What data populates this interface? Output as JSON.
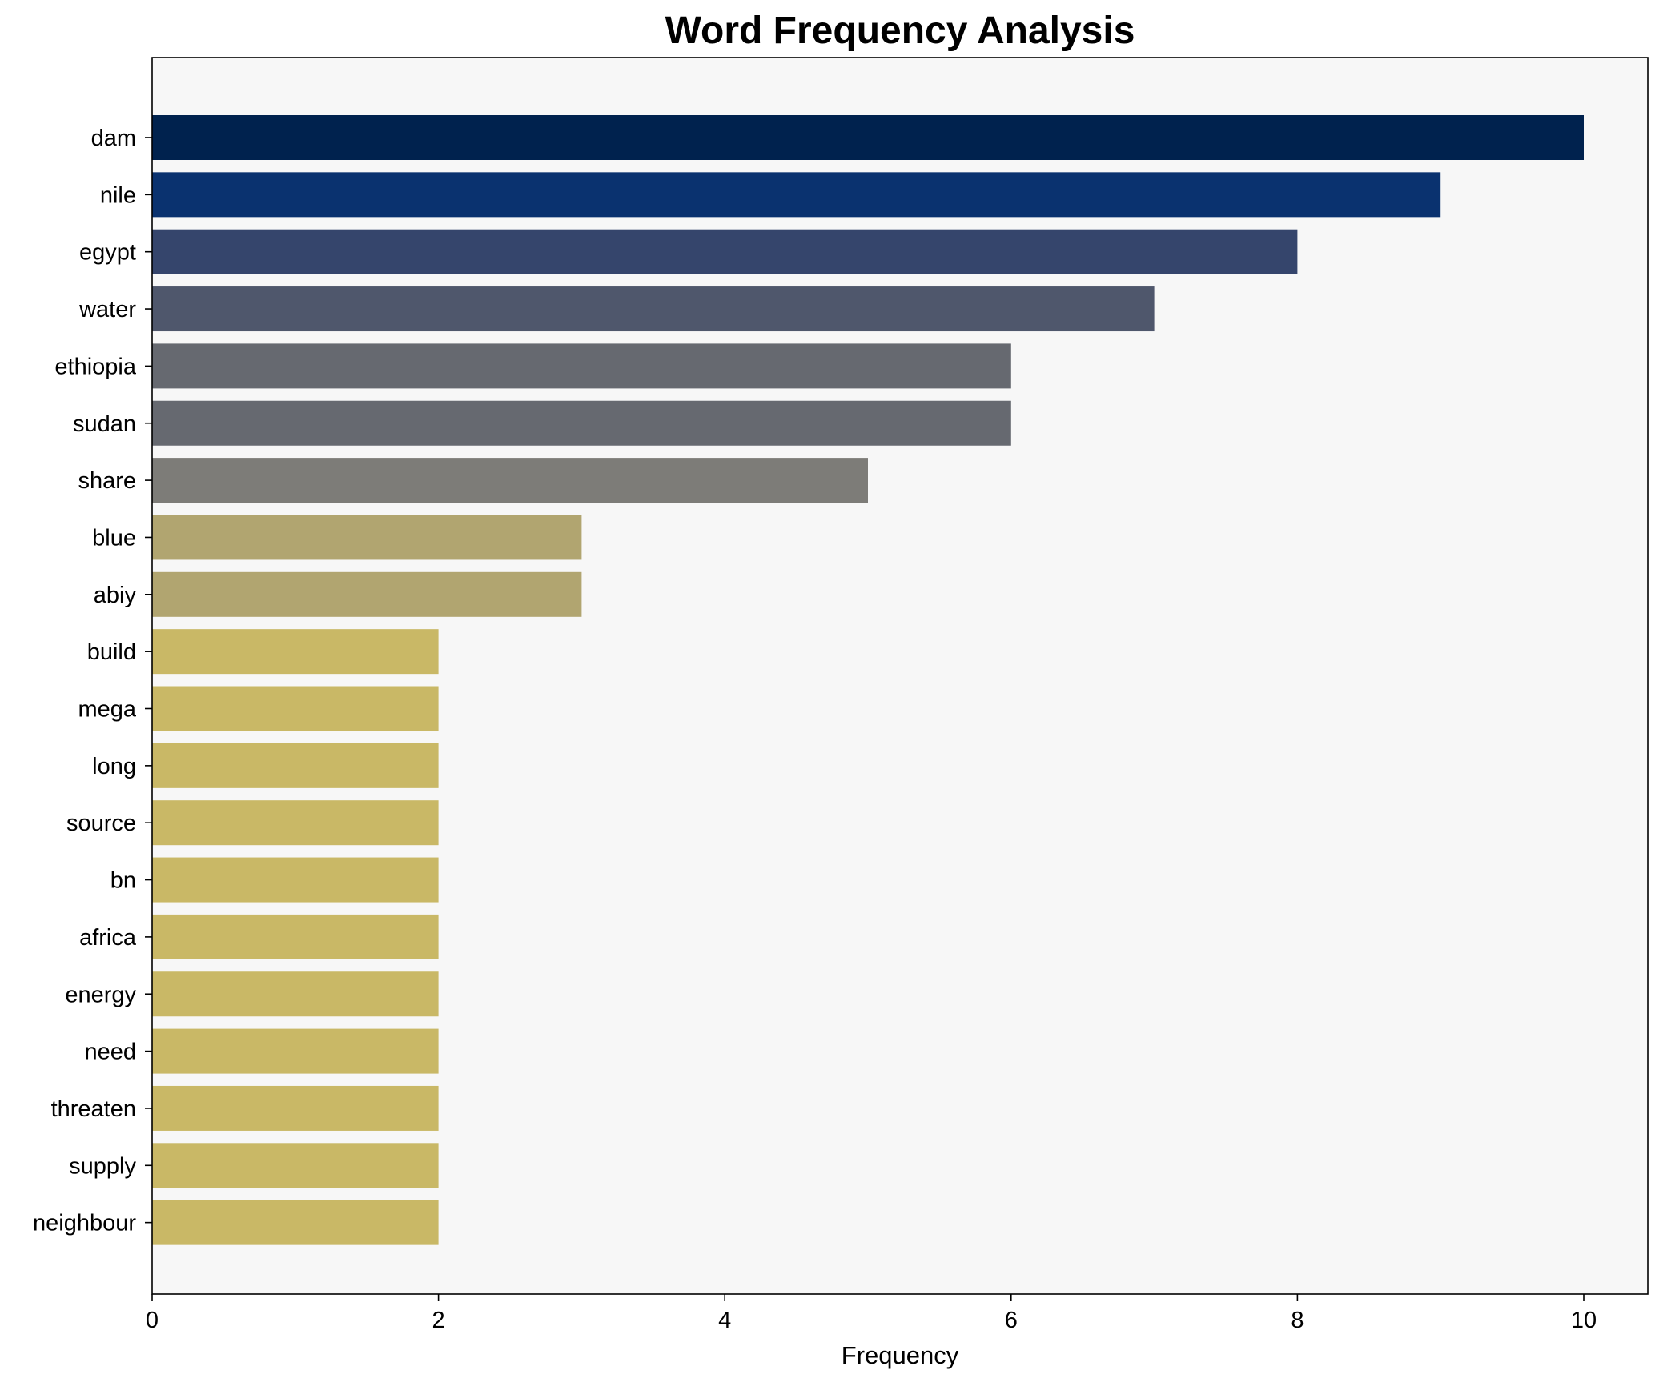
{
  "chart_data": {
    "type": "bar",
    "orientation": "horizontal",
    "title": "Word Frequency Analysis",
    "xlabel": "Frequency",
    "ylabel": "",
    "xlim": [
      0,
      10.5
    ],
    "xticks": [
      0,
      2,
      4,
      6,
      8,
      10
    ],
    "grid": false,
    "categories": [
      "dam",
      "nile",
      "egypt",
      "water",
      "ethiopia",
      "sudan",
      "share",
      "blue",
      "abiy",
      "build",
      "mega",
      "long",
      "source",
      "bn",
      "africa",
      "energy",
      "need",
      "threaten",
      "supply",
      "neighbour"
    ],
    "values": [
      10,
      9,
      8,
      7,
      6,
      6,
      5,
      3,
      3,
      2,
      2,
      2,
      2,
      2,
      2,
      2,
      2,
      2,
      2,
      2
    ],
    "colors": [
      "#00224e",
      "#0a326f",
      "#35456c",
      "#4f576c",
      "#666970",
      "#666970",
      "#7d7c78",
      "#b1a570",
      "#b1a570",
      "#c9b866",
      "#c9b866",
      "#c9b866",
      "#c9b866",
      "#c9b866",
      "#c9b866",
      "#c9b866",
      "#c9b866",
      "#c9b866",
      "#c9b866",
      "#c9b866"
    ],
    "plot_background": "#f7f7f7"
  }
}
